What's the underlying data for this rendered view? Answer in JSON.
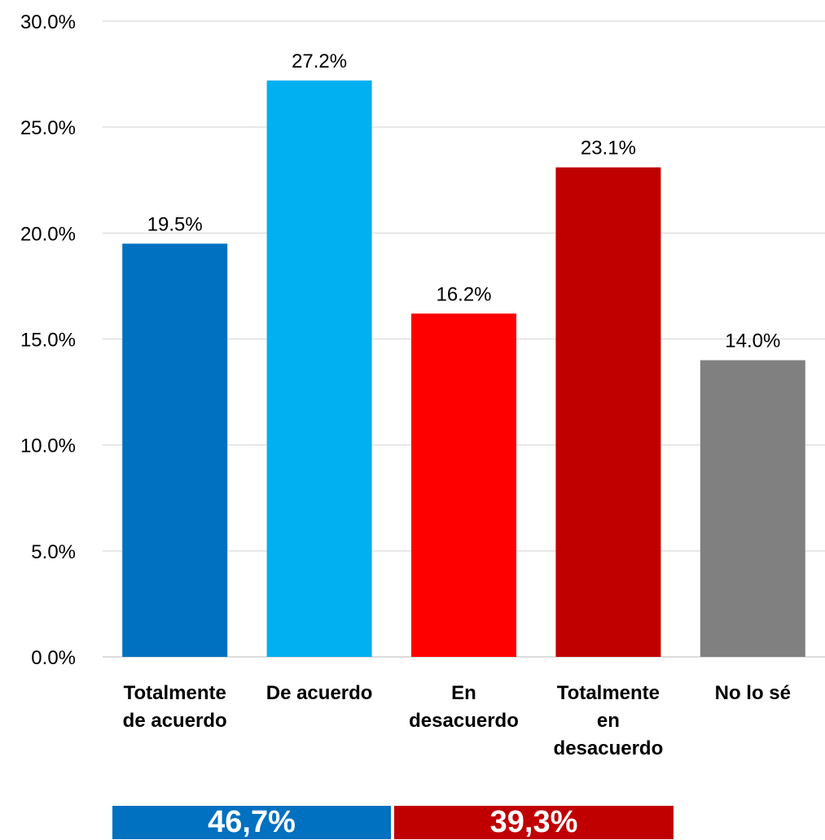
{
  "chart_data": {
    "type": "bar",
    "categories": [
      [
        "Totalmente",
        "de acuerdo"
      ],
      [
        "De acuerdo"
      ],
      [
        "En",
        "desacuerdo"
      ],
      [
        "Totalmente",
        "en",
        "desacuerdo"
      ],
      [
        "No lo sé"
      ]
    ],
    "values": [
      19.5,
      27.2,
      16.2,
      23.1,
      14.0
    ],
    "data_labels": [
      "19.5%",
      "27.2%",
      "16.2%",
      "23.1%",
      "14.0%"
    ],
    "colors": [
      "#0070C0",
      "#00B0F0",
      "#FF0000",
      "#C00000",
      "#808080"
    ],
    "ylim": [
      0,
      30
    ],
    "yticks": [
      "0.0%",
      "5.0%",
      "10.0%",
      "15.0%",
      "20.0%",
      "25.0%",
      "30.0%"
    ],
    "grid": true,
    "title": "",
    "xlabel": "",
    "ylabel": ""
  },
  "summary": {
    "left": {
      "label": "46,7%",
      "color": "#0070C0"
    },
    "right": {
      "label": "39,3%",
      "color": "#C00000"
    }
  }
}
